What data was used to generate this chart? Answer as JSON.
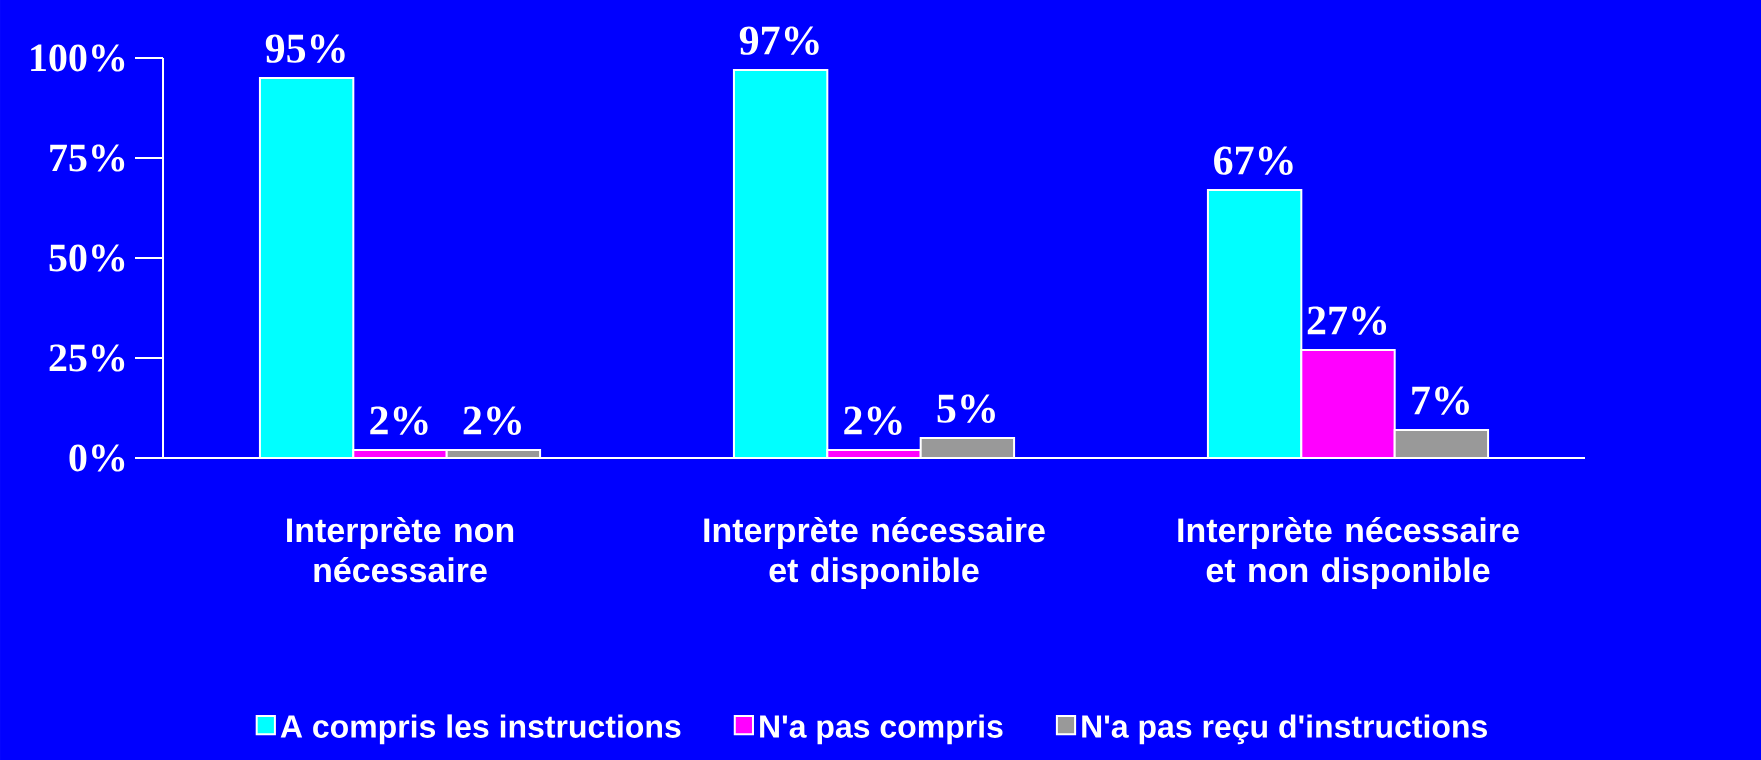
{
  "chart_data": {
    "type": "bar",
    "categories": [
      "Interprète non nécessaire",
      "Interprète nécessaire et disponible",
      "Interprète nécessaire et non disponible"
    ],
    "series": [
      {
        "name": "A compris les instructions",
        "color": "#00ffff",
        "values": [
          95,
          97,
          67
        ],
        "value_labels": [
          "95%",
          "97%",
          "67%"
        ]
      },
      {
        "name": "N'a pas compris",
        "color": "#ff00ff",
        "values": [
          2,
          2,
          27
        ],
        "value_labels": [
          "2%",
          "2%",
          "27%"
        ]
      },
      {
        "name": "N'a pas reçu d'instructions",
        "color": "#999999",
        "values": [
          2,
          5,
          7
        ],
        "value_labels": [
          "2%",
          "5%",
          "7%"
        ]
      }
    ],
    "ylim": [
      0,
      100
    ],
    "yticks": [
      {
        "value": 0,
        "label": "0%"
      },
      {
        "value": 25,
        "label": "25%"
      },
      {
        "value": 50,
        "label": "50%"
      },
      {
        "value": 75,
        "label": "75%"
      },
      {
        "value": 100,
        "label": "100%"
      }
    ],
    "grid": false,
    "legend": "bottom"
  }
}
